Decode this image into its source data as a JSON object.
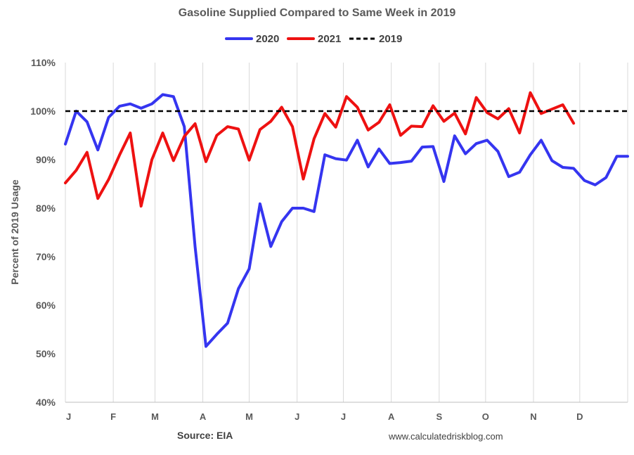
{
  "chart_data": {
    "type": "line",
    "title": "Gasoline Supplied Compared to Same Week in 2019",
    "xlabel": "",
    "ylabel": "Percent of 2019 Usage",
    "ylim": [
      40,
      110
    ],
    "y_ticks": [
      "40%",
      "50%",
      "60%",
      "70%",
      "80%",
      "90%",
      "100%",
      "110%"
    ],
    "y_tick_values": [
      40,
      50,
      60,
      70,
      80,
      90,
      100,
      110
    ],
    "x_range_weeks": [
      1,
      53
    ],
    "month_labels": [
      "J",
      "F",
      "M",
      "A",
      "M",
      "J",
      "J",
      "A",
      "S",
      "O",
      "N",
      "D"
    ],
    "month_start_weeks": [
      1,
      5.43,
      9.29,
      13.71,
      18,
      22.43,
      26.71,
      31.14,
      35.57,
      39.86,
      44.29,
      48.57
    ],
    "grid": "vertical-month-lines",
    "legend_position": "top-center",
    "series": [
      {
        "name": "2020",
        "color": "#3535f0",
        "style": "solid",
        "x": [
          1,
          2,
          3,
          4,
          5,
          6,
          7,
          8,
          9,
          10,
          11,
          12,
          13,
          14,
          15,
          16,
          17,
          18,
          19,
          20,
          21,
          22,
          23,
          24,
          25,
          26,
          27,
          28,
          29,
          30,
          31,
          32,
          33,
          34,
          35,
          36,
          37,
          38,
          39,
          40,
          41,
          42,
          43,
          44,
          45,
          46,
          47,
          48,
          49,
          50,
          51,
          52,
          53
        ],
        "values": [
          93.2,
          100.0,
          97.8,
          92.0,
          98.7,
          101.0,
          101.5,
          100.6,
          101.5,
          103.4,
          103.0,
          96.8,
          72.0,
          51.5,
          54.0,
          56.3,
          63.4,
          67.5,
          80.9,
          72.1,
          77.2,
          80.0,
          80.0,
          79.3,
          91.0,
          90.2,
          89.9,
          94.0,
          88.5,
          92.2,
          89.2,
          89.4,
          89.7,
          92.6,
          92.7,
          85.5,
          94.9,
          91.2,
          93.3,
          94.0,
          91.7,
          86.5,
          87.4,
          91.0,
          94.0,
          89.8,
          88.4,
          88.2,
          85.7,
          84.8,
          86.3,
          90.7,
          90.7
        ]
      },
      {
        "name": "2021",
        "color": "#ee1111",
        "style": "solid",
        "x": [
          1,
          2,
          3,
          4,
          5,
          6,
          7,
          8,
          9,
          10,
          11,
          12,
          13,
          14,
          15,
          16,
          17,
          18,
          19,
          20,
          21,
          22,
          23,
          24,
          25,
          26,
          27,
          28,
          29,
          30,
          31,
          32,
          33,
          34,
          35,
          36,
          37,
          38,
          39,
          40,
          41,
          42,
          43,
          44,
          45,
          46,
          47,
          48
        ],
        "values": [
          85.2,
          87.8,
          91.5,
          82.0,
          85.9,
          90.9,
          95.5,
          80.4,
          90.0,
          95.5,
          89.8,
          94.8,
          97.4,
          89.6,
          95.0,
          96.8,
          96.3,
          89.9,
          96.2,
          97.9,
          100.8,
          96.8,
          86.0,
          94.3,
          99.5,
          96.7,
          103.0,
          100.8,
          96.1,
          97.7,
          101.3,
          95.0,
          96.9,
          96.8,
          101.1,
          97.9,
          99.6,
          95.3,
          102.8,
          99.7,
          98.4,
          100.5,
          95.5,
          103.8,
          99.5,
          100.4,
          101.3,
          97.5
        ]
      },
      {
        "name": "2019",
        "color": "#000000",
        "style": "dashed",
        "x": [
          1,
          53
        ],
        "values": [
          100,
          100
        ]
      }
    ]
  },
  "footer": {
    "source": "Source: EIA",
    "credit": "www.calculatedriskblog.com"
  }
}
